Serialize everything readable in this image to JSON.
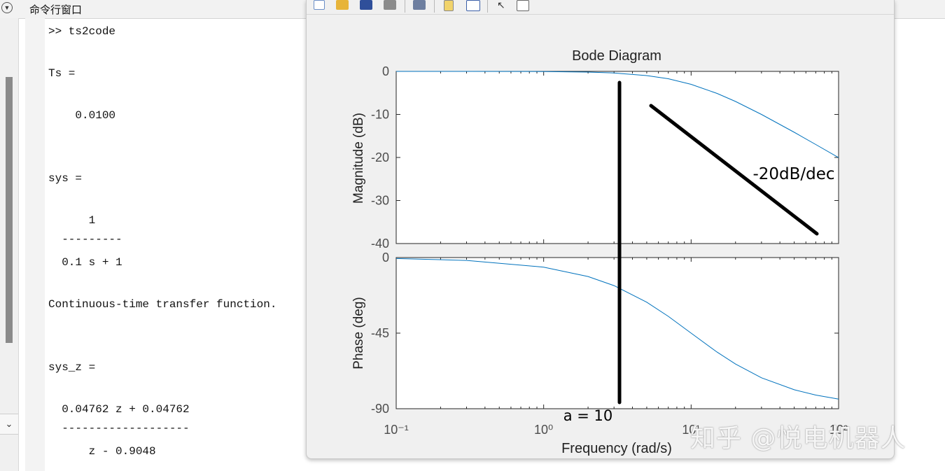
{
  "command_window": {
    "title": "命令行窗口",
    "lines": [
      ">> ts2code",
      "Ts =",
      "    0.0100",
      "sys =",
      "      1",
      "  ---------",
      "  0.1 s + 1",
      "Continuous-time transfer function.",
      "sys_z =",
      "  0.04762 z + 0.04762",
      "  -------------------",
      "      z - 0.9048"
    ]
  },
  "figure": {
    "toolbar_icons": [
      "new-figure-icon",
      "open-folder-icon",
      "save-icon",
      "print-icon",
      "print-preview-icon",
      "link-plot-icon",
      "insert-legend-icon",
      "pointer-icon",
      "property-editor-icon"
    ],
    "curve_color": "#0072bd",
    "annotation_color": "#000000"
  },
  "chart_data": {
    "type": "line",
    "title": "Bode Diagram",
    "xlabel": "Frequency  (rad/s)",
    "xscale": "log",
    "xlim": [
      0.1,
      100
    ],
    "xticks": [
      "10⁻¹",
      "10⁰",
      "10¹",
      "10²"
    ],
    "grid": false,
    "subplots": [
      {
        "name": "magnitude",
        "ylabel": "Magnitude (dB)",
        "ylim": [
          -40,
          0
        ],
        "yticks": [
          "0",
          "-10",
          "-20",
          "-30",
          "-40"
        ],
        "x": [
          0.1,
          0.3,
          1,
          2,
          3,
          5,
          7,
          10,
          15,
          20,
          30,
          50,
          70,
          100
        ],
        "y": [
          0,
          -0.004,
          -0.04,
          -0.17,
          -0.37,
          -0.97,
          -1.7,
          -3.01,
          -5.12,
          -6.99,
          -10.0,
          -14.15,
          -16.99,
          -20.04
        ]
      },
      {
        "name": "phase",
        "ylabel": "Phase (deg)",
        "ylim": [
          -90,
          0
        ],
        "yticks": [
          "0",
          "-45",
          "-90"
        ],
        "x": [
          0.1,
          0.3,
          1,
          2,
          3,
          5,
          7,
          10,
          15,
          20,
          30,
          50,
          70,
          100
        ],
        "y": [
          -0.57,
          -1.72,
          -5.71,
          -11.31,
          -16.7,
          -26.57,
          -34.99,
          -45.0,
          -56.31,
          -63.43,
          -71.57,
          -78.69,
          -81.87,
          -84.29
        ]
      }
    ],
    "annotations": [
      "-20dB/dec",
      "a = 10"
    ]
  },
  "watermark": "知乎 @悦电机器人"
}
